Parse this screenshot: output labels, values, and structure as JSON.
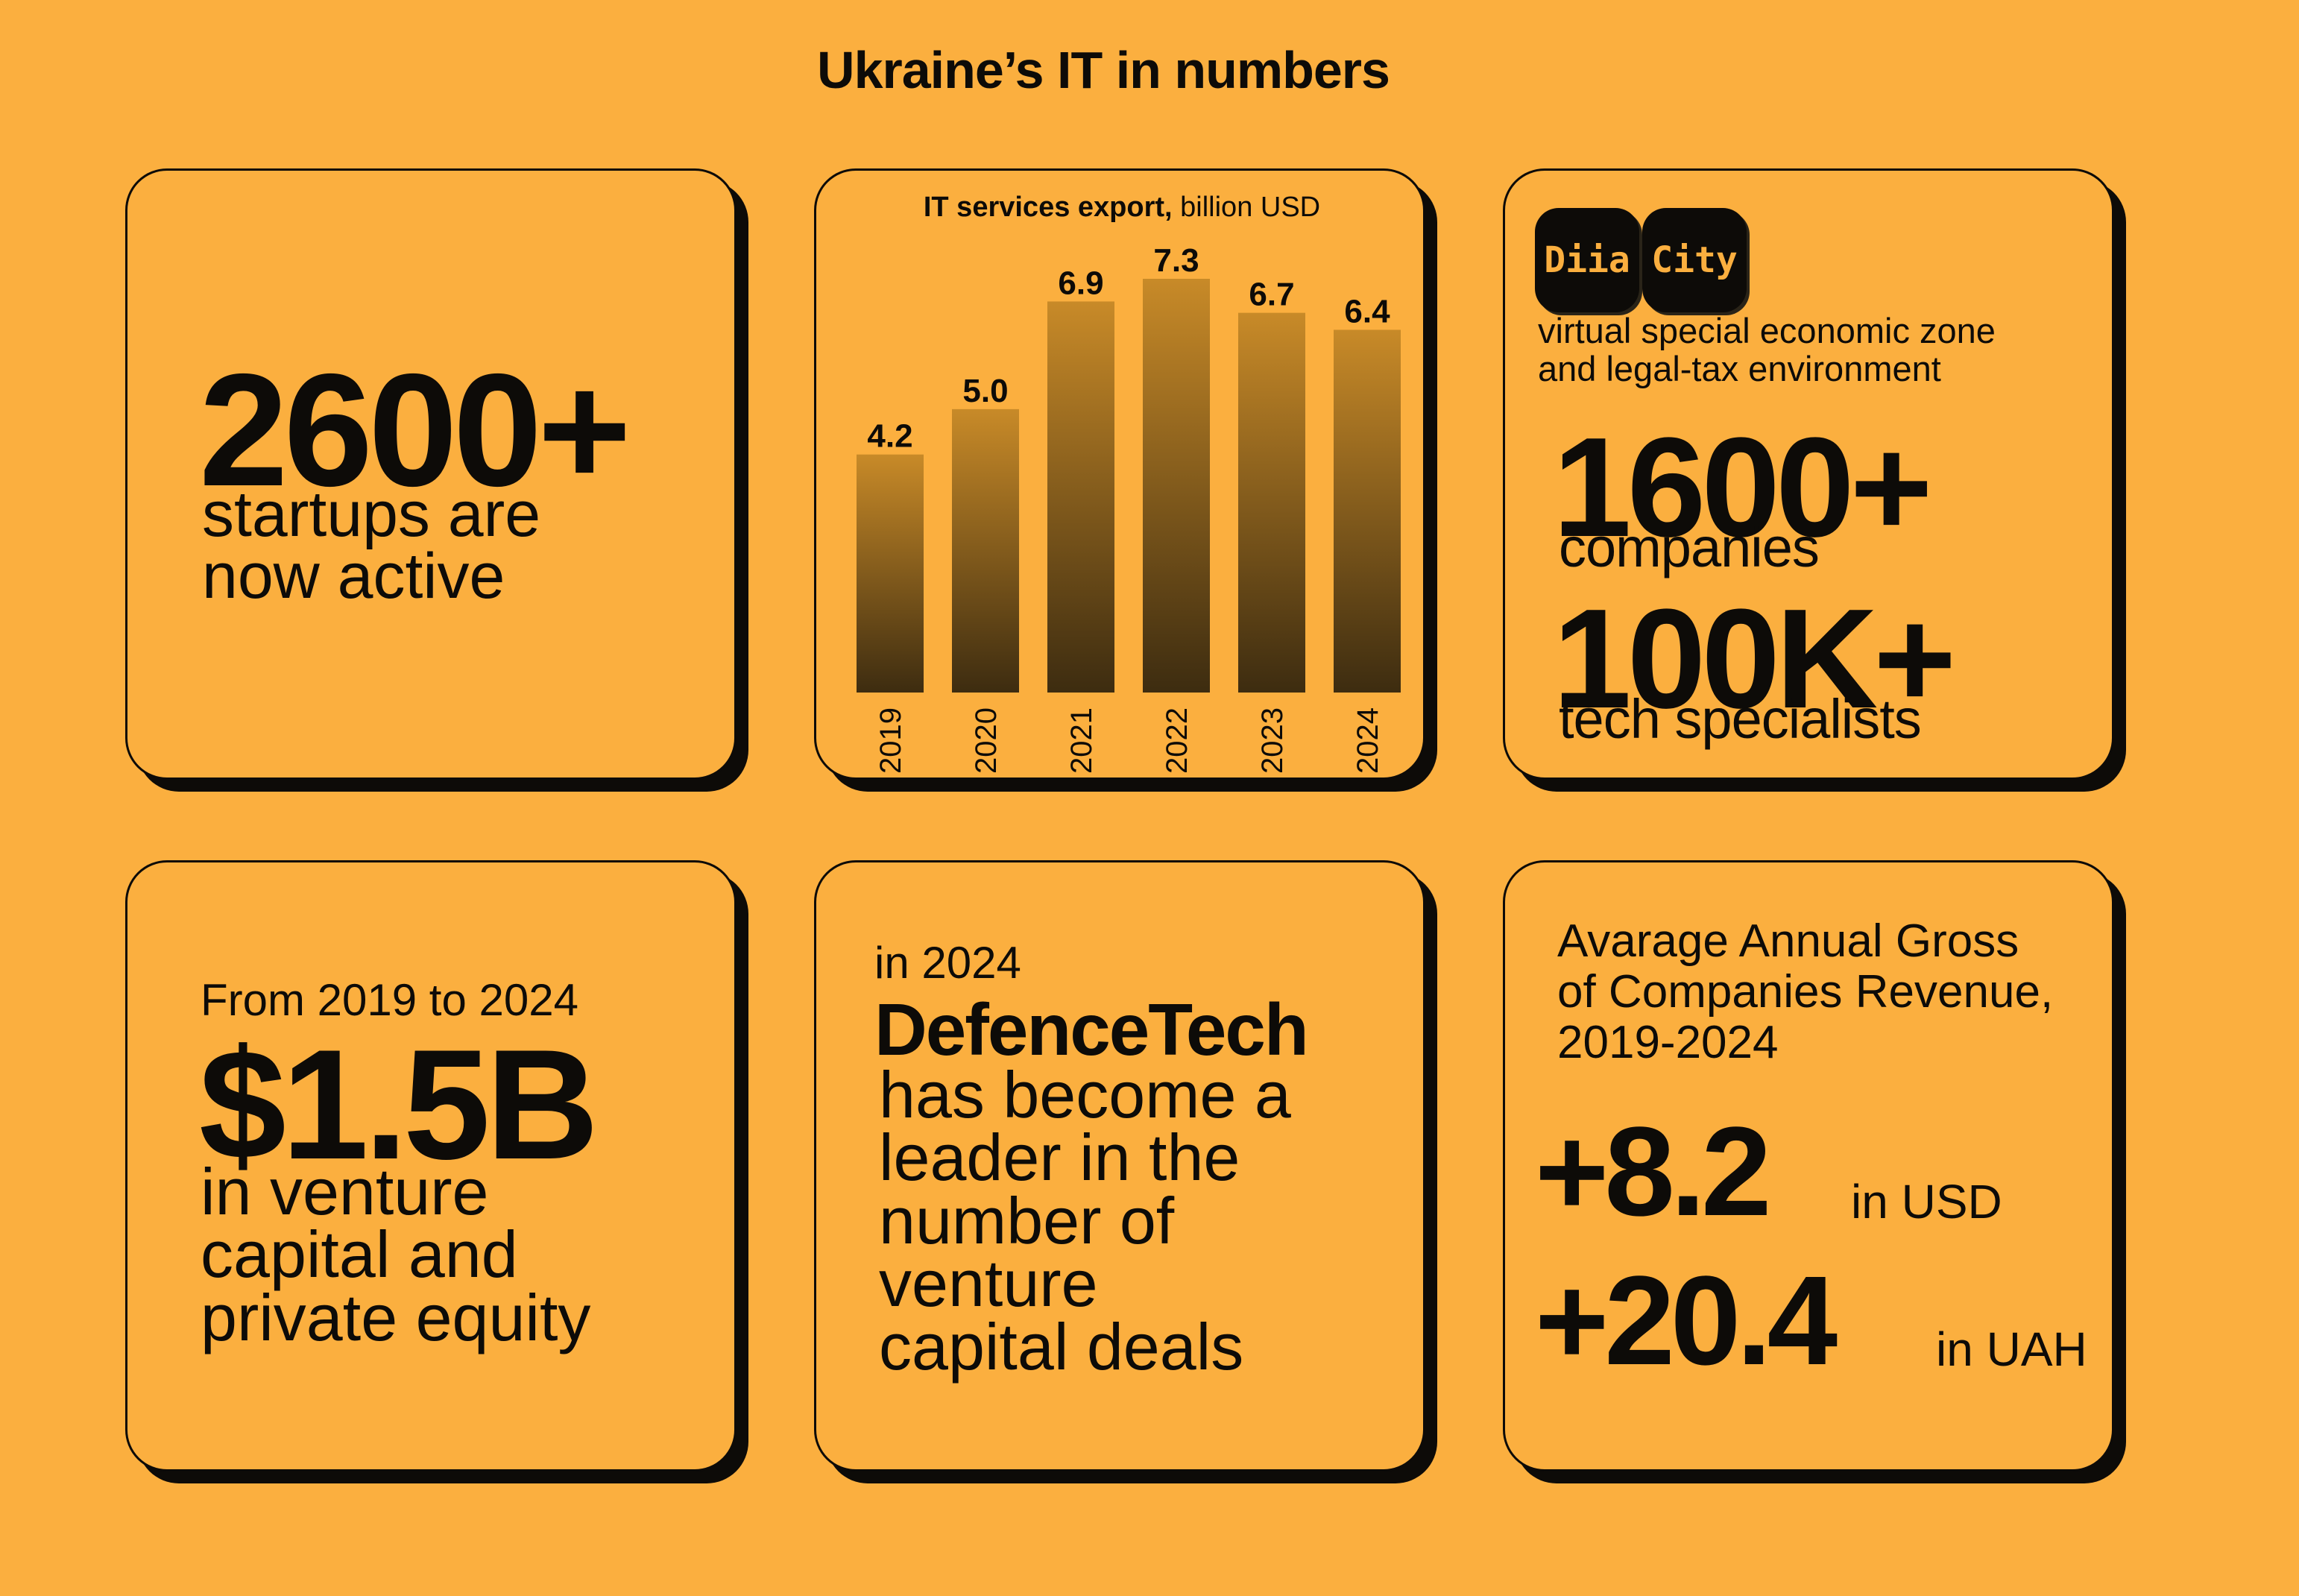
{
  "title": "Ukraine’s IT in numbers",
  "startups": {
    "number": "2600+",
    "text": "startups are\nnow active"
  },
  "export_chart": {
    "title_bold": "IT services export,",
    "title_rest": " billion USD"
  },
  "chart_data": {
    "type": "bar",
    "title": "IT services export, billion USD",
    "categories": [
      "2019",
      "2020",
      "2021",
      "2022",
      "2023",
      "2024"
    ],
    "values": [
      4.2,
      5.0,
      6.9,
      7.3,
      6.7,
      6.4
    ],
    "value_labels": [
      "4.2",
      "5.0",
      "6.9",
      "7.3",
      "6.7",
      "6.4"
    ],
    "xlabel": "",
    "ylabel": "",
    "ylim": [
      0,
      7.3
    ],
    "grid": false,
    "bar_gradient": [
      "#c88a28",
      "#3d2c10"
    ]
  },
  "diia": {
    "logo_left": "Dіia",
    "logo_right": "City",
    "description": "virtual special economic zone\nand legal-tax environment",
    "companies_number": "1600+",
    "companies_label": "companies",
    "specialists_number": "100K+",
    "specialists_label": "tech specialists"
  },
  "venture": {
    "period": "From 2019 to 2024",
    "amount": "$1.5B",
    "text": "in venture\ncapital and\nprivate equity"
  },
  "defence": {
    "year": "in 2024",
    "headline": "DefenceTech",
    "text": "has become a\nleader in the\nnumber of\nventure\ncapital deals"
  },
  "revenue": {
    "title": "Avarage Annual Gross\nof Companies Revenue,\n2019-2024",
    "usd_value": "+8.2",
    "usd_label": "in USD",
    "uah_value": "+20.4",
    "uah_label": "in UAH"
  },
  "colors": {
    "background": "#FBAF3F",
    "ink": "#0d0b08"
  }
}
